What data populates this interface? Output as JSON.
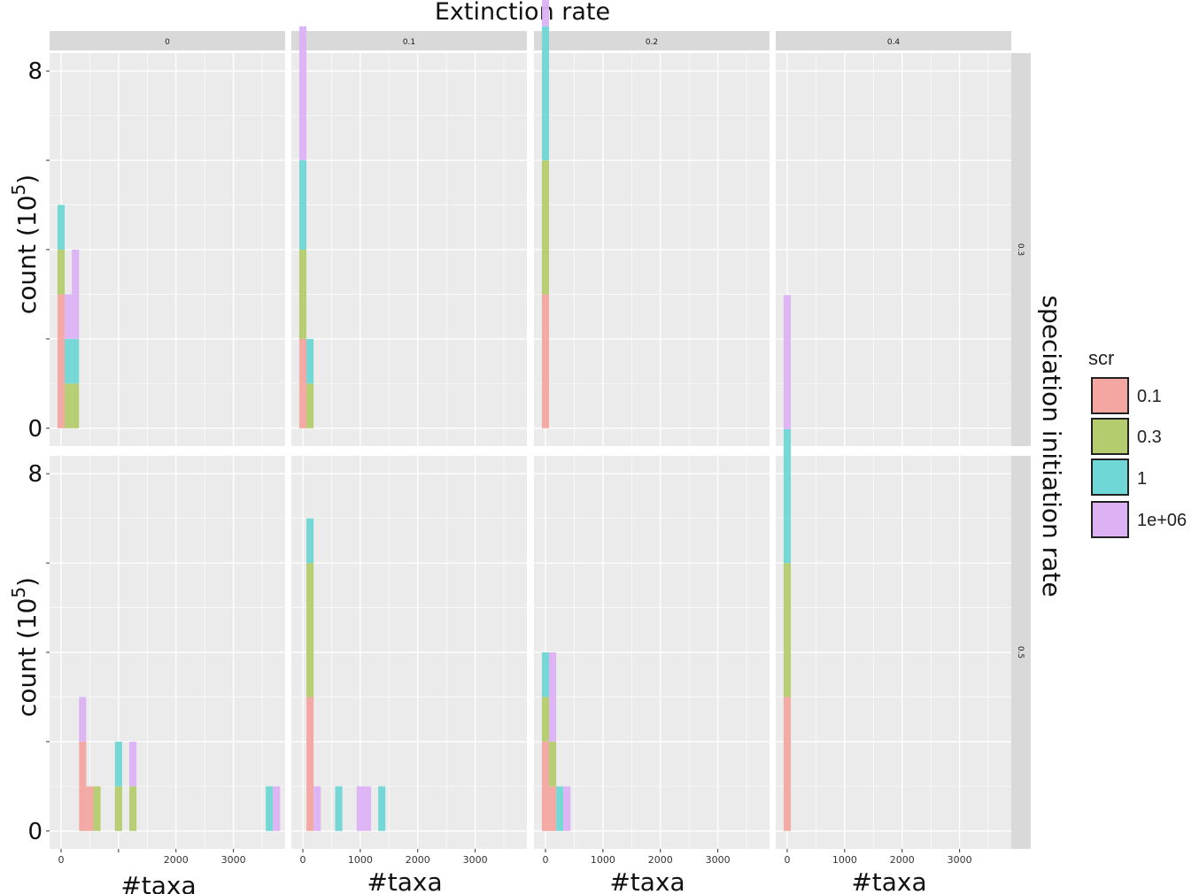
{
  "chart_data": {
    "type": "bar",
    "subtype": "stacked-histogram",
    "title": "Extinction rate",
    "xlabel": "#taxa",
    "ylabel_base": "count (10",
    "ylabel_exp": "5",
    "ylabel_close": ")",
    "right_strip_title": "speciation initiation rate",
    "column_labels": [
      "0",
      "0.1",
      "0.2",
      "0.4"
    ],
    "row_labels": [
      "0.3",
      "0.5"
    ],
    "x_ticks": [
      {
        "value": 0,
        "label": "0"
      },
      {
        "value": 1000,
        "label": "1000"
      },
      {
        "value": 2000,
        "label": "2000"
      },
      {
        "value": 3000,
        "label": "3000"
      }
    ],
    "y_ticks": [
      {
        "value": 0,
        "label": "0"
      },
      {
        "value": 8,
        "label": "8"
      }
    ],
    "y_minor_ticks": [
      2,
      4,
      6
    ],
    "xlim": [
      -200,
      3900
    ],
    "ylim": [
      -0.4,
      8.4
    ],
    "bin_width": 125,
    "legend": {
      "title": "scr",
      "position": "right",
      "entries": [
        "0.1",
        "0.3",
        "1",
        "1e+06"
      ]
    },
    "colors": {
      "0.1": "#f4a6a0",
      "0.3": "#b5cc6e",
      "1": "#6fd7d6",
      "1e+06": "#dcb2f5",
      "panel_bg": "#ebebeb",
      "grid": "#ffffff",
      "strip_bg": "#d9d9d9"
    },
    "series_names": [
      "0.1",
      "0.3",
      "1",
      "1e+06"
    ],
    "facets": [
      {
        "row": 0,
        "col": 0,
        "bins": [
          {
            "x": 0,
            "counts": [
              3,
              1,
              1,
              0
            ]
          },
          {
            "x": 125,
            "counts": [
              0,
              1,
              1,
              1
            ]
          },
          {
            "x": 250,
            "counts": [
              0,
              1,
              1,
              2
            ]
          }
        ]
      },
      {
        "row": 0,
        "col": 1,
        "bins": [
          {
            "x": 0,
            "counts": [
              2,
              2,
              2,
              3
            ]
          },
          {
            "x": 125,
            "counts": [
              0,
              1,
              1,
              0
            ]
          }
        ]
      },
      {
        "row": 0,
        "col": 2,
        "bins": [
          {
            "x": 0,
            "counts": [
              3,
              3,
              3,
              3
            ]
          }
        ]
      },
      {
        "row": 0,
        "col": 3,
        "bins": []
      },
      {
        "row": 1,
        "col": 0,
        "bins": [
          {
            "x": 375,
            "counts": [
              2,
              0,
              0,
              1
            ]
          },
          {
            "x": 500,
            "counts": [
              1,
              0,
              0,
              0
            ]
          },
          {
            "x": 625,
            "counts": [
              0,
              1,
              0,
              0
            ]
          },
          {
            "x": 1000,
            "counts": [
              0,
              1,
              1,
              0
            ]
          },
          {
            "x": 1250,
            "counts": [
              0,
              1,
              0,
              1
            ]
          },
          {
            "x": 3625,
            "counts": [
              0,
              0,
              1,
              0
            ]
          },
          {
            "x": 3750,
            "counts": [
              0,
              0,
              0,
              1
            ]
          }
        ]
      },
      {
        "row": 1,
        "col": 1,
        "bins": [
          {
            "x": 125,
            "counts": [
              3,
              3,
              1,
              0
            ]
          },
          {
            "x": 250,
            "counts": [
              0,
              0,
              0,
              1
            ]
          },
          {
            "x": 625,
            "counts": [
              0,
              0,
              1,
              0
            ]
          },
          {
            "x": 1000,
            "counts": [
              0,
              0,
              0,
              1
            ]
          },
          {
            "x": 1125,
            "counts": [
              0,
              0,
              0,
              1
            ]
          },
          {
            "x": 1375,
            "counts": [
              0,
              0,
              1,
              0
            ]
          }
        ]
      },
      {
        "row": 1,
        "col": 2,
        "bins": [
          {
            "x": 0,
            "counts": [
              2,
              1,
              1,
              0
            ]
          },
          {
            "x": 125,
            "counts": [
              1,
              1,
              0,
              2
            ]
          },
          {
            "x": 250,
            "counts": [
              0,
              0,
              1,
              0
            ]
          },
          {
            "x": 375,
            "counts": [
              0,
              0,
              0,
              1
            ]
          }
        ]
      },
      {
        "row": 1,
        "col": 3,
        "bins": [
          {
            "x": 0,
            "counts": [
              3,
              3,
              3,
              3
            ]
          }
        ]
      }
    ]
  }
}
